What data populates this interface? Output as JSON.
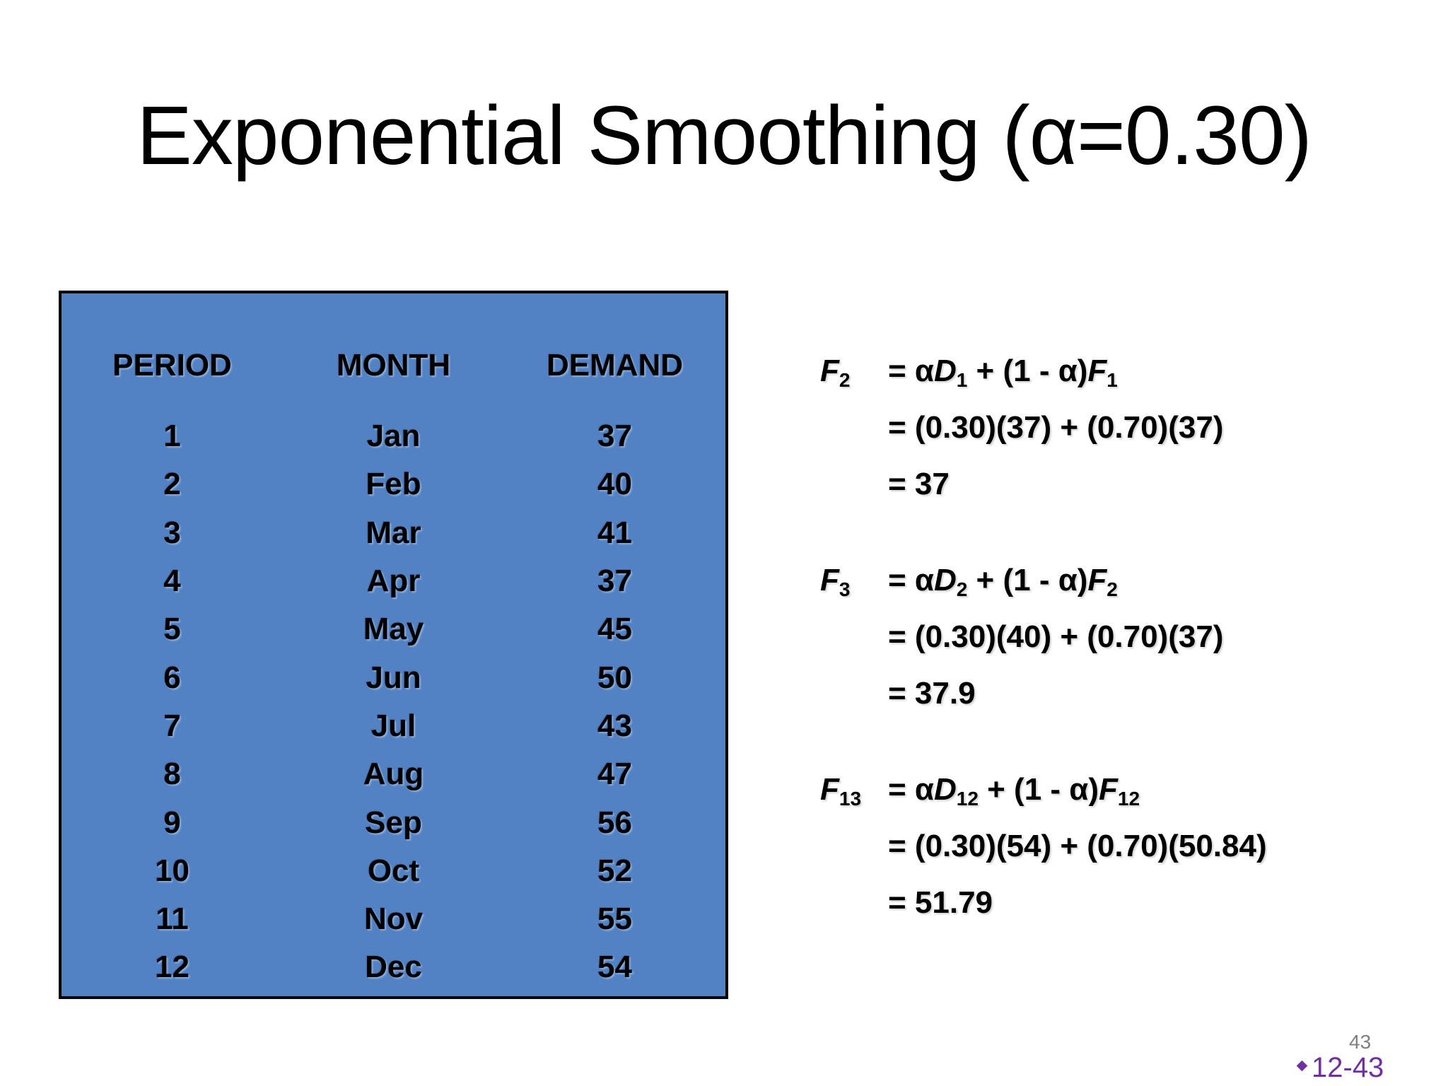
{
  "title": "Exponential Smoothing (α=0.30)",
  "table": {
    "headers": [
      "PERIOD",
      "MONTH",
      "DEMAND"
    ],
    "rows": [
      [
        "1",
        "Jan",
        "37"
      ],
      [
        "2",
        "Feb",
        "40"
      ],
      [
        "3",
        "Mar",
        "41"
      ],
      [
        "4",
        "Apr",
        "37"
      ],
      [
        "5",
        "May",
        "45"
      ],
      [
        "6",
        "Jun",
        "50"
      ],
      [
        "7",
        "Jul",
        "43"
      ],
      [
        "8",
        "Aug",
        "47"
      ],
      [
        "9",
        "Sep",
        "56"
      ],
      [
        "10",
        "Oct",
        "52"
      ],
      [
        "11",
        "Nov",
        "55"
      ],
      [
        "12",
        "Dec",
        "54"
      ]
    ],
    "background_color": "#5282c4"
  },
  "formulas": [
    {
      "var": "F",
      "var_sub": "2",
      "definition": {
        "d_sub": "1",
        "f_sub": "1"
      },
      "substitution": "= (0.30)(37) + (0.70)(37)",
      "result": "= 37"
    },
    {
      "var": "F",
      "var_sub": "3",
      "definition": {
        "d_sub": "2",
        "f_sub": "2"
      },
      "substitution": "= (0.30)(40) + (0.70)(37)",
      "result": "= 37.9"
    },
    {
      "var": "F",
      "var_sub": "13",
      "definition": {
        "d_sub": "12",
        "f_sub": "12"
      },
      "substitution": "= (0.30)(54) + (0.70)(50.84)",
      "result": "= 51.79"
    }
  ],
  "formula_parts": {
    "eq_alpha": "= α",
    "d": "D",
    "plus_paren": " + (1 - α)",
    "f": "F"
  },
  "footer": {
    "page_number": "43",
    "slide_code": "12-43",
    "slide_code_color": "#7030a0"
  }
}
